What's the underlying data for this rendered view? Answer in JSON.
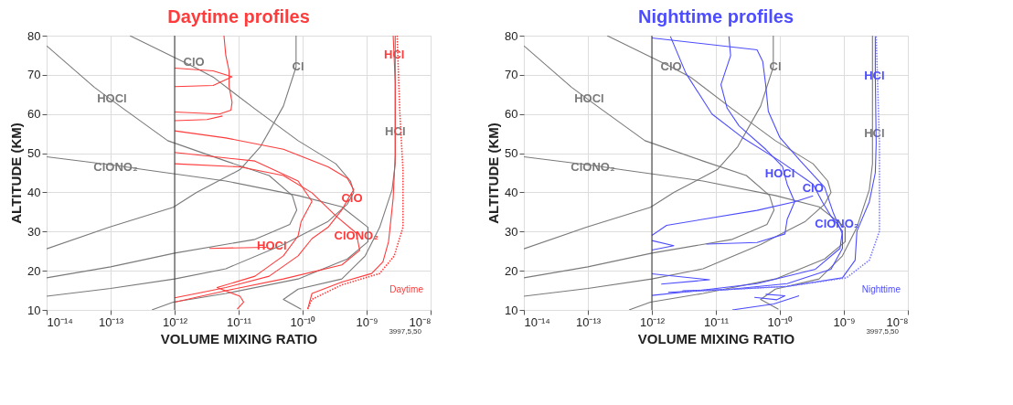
{
  "chart_data": [
    {
      "type": "line",
      "title": "Daytime profiles",
      "xlabel": "VOLUME MIXING RATIO",
      "ylabel": "ALTITUDE (KM)",
      "log": "x",
      "grid": true,
      "xlim": [
        1e-14,
        1e-08
      ],
      "ylim": [
        10,
        80
      ],
      "xticks": [
        {
          "value": 1e-14,
          "label": "10⁻¹⁴"
        },
        {
          "value": 1e-13,
          "label": "10⁻¹³"
        },
        {
          "value": 1e-12,
          "label": "10⁻¹²"
        },
        {
          "value": 1e-11,
          "label": "10⁻¹¹"
        },
        {
          "value": 1e-10,
          "label": "10⁻¹⁰"
        },
        {
          "value": 1e-09,
          "label": "10⁻⁹"
        },
        {
          "value": 1e-08,
          "label": "10⁻⁸"
        }
      ],
      "yticks": [
        10,
        20,
        30,
        40,
        50,
        60,
        70,
        80
      ],
      "ref_lines": [
        {
          "axis": "x",
          "value": 1e-12,
          "color": "#333333"
        }
      ],
      "series": [
        {
          "color": "#7a7a7a",
          "x": [
            2e-13,
            2e-12,
            4.1e-12,
            1.8e-11,
            8.5e-11,
            3.3e-10,
            5.6e-10,
            6.3e-10,
            5e-10,
            2.5e-10,
            5e-11,
            6.3e-12,
            1e-12,
            1e-13,
            1e-14
          ],
          "values": [
            80,
            72,
            69.3,
            61.3,
            53.2,
            47.3,
            42.9,
            40,
            37,
            32.6,
            26.7,
            20.5,
            17.9,
            15.5,
            13.5
          ]
        },
        {
          "color": "#7a7a7a",
          "x": [
            1e-14,
            5.6e-14,
            1.6e-13,
            7.8e-13,
            6.3e-12,
            3e-11,
            6.9e-11,
            8.1e-11,
            6.3e-11,
            1.8e-11,
            1e-12,
            1e-13,
            1e-14
          ],
          "values": [
            77.4,
            66.8,
            61.3,
            53.2,
            48,
            44.3,
            39.2,
            35.5,
            31.8,
            28,
            24.5,
            21,
            18.2
          ]
        },
        {
          "color": "#7a7a7a",
          "x": [
            1e-14,
            1.3e-13,
            3.3e-13,
            6.3e-12,
            8.5e-11,
            4.1e-10,
            1.05e-09,
            1.05e-09,
            5e-10,
            8.5e-11,
            6.3e-12,
            9.5e-13,
            4.4e-13
          ],
          "values": [
            49.1,
            46.8,
            45.8,
            42.9,
            39.2,
            36.3,
            31.1,
            27.4,
            23,
            17.9,
            14.2,
            12,
            10
          ]
        },
        {
          "color": "#7a7a7a",
          "x": [
            7.9e-11,
            7.9e-11,
            5e-11,
            2.2e-11,
            1.05e-11,
            2.2e-12,
            9.5e-13,
            9.5e-14,
            1e-14
          ],
          "values": [
            80,
            72,
            62,
            51.7,
            45.8,
            40,
            36.2,
            31.1,
            25.6
          ]
        },
        {
          "color": "#7a7a7a",
          "x": [
            9.5e-11,
            5e-11,
            8.5e-11,
            4.1e-10,
            9.5e-10,
            1.6e-09,
            2.5e-09,
            2.8e-09,
            2.8e-09,
            2.8e-09,
            2.8e-09
          ],
          "values": [
            10.2,
            12.7,
            15.3,
            17.9,
            23.8,
            31.1,
            40.7,
            47.3,
            54,
            60.5,
            80
          ]
        },
        {
          "color": "#ff3b3b",
          "x": [
            1e-12,
            6.3e-12,
            5e-11,
            2.5e-10,
            5e-10,
            6.3e-10,
            5.2e-10,
            4.1e-10,
            2.5e-10,
            1.4e-10,
            8.5e-11,
            3e-11,
            6.3e-12,
            2.2e-12,
            1e-12
          ],
          "values": [
            55.7,
            53.9,
            51,
            46.5,
            43.6,
            40.7,
            38.5,
            35.5,
            31.1,
            28.2,
            23.8,
            18.6,
            15.7,
            14.2,
            13.1
          ]
        },
        {
          "color": "#ff3b3b",
          "x": [
            1e-12,
            1.05e-11,
            5e-11,
            1.4e-10,
            3.3e-10,
            6.9e-10,
            7.8e-10,
            4.1e-10,
            5e-11,
            6.3e-12,
            1e-12
          ],
          "values": [
            47.3,
            46.5,
            44.3,
            39.9,
            34,
            29.6,
            25.2,
            21.5,
            17.9,
            14.9,
            12
          ]
        },
        {
          "color": "#ff3b3b",
          "x": [
            1e-12,
            1.8e-11,
            8.5e-11,
            1.4e-10,
            9.5e-11,
            8.5e-11,
            5e-11,
            1.8e-11,
            4.6e-12,
            1.05e-11,
            1.2e-11,
            9.5e-12
          ],
          "values": [
            50.2,
            48,
            42.9,
            37.7,
            32.6,
            28.9,
            23.8,
            18.6,
            15.7,
            13.5,
            12,
            10.2
          ]
        },
        {
          "color": "#ff3b3b",
          "x": [
            3.5e-12,
            2.7e-11
          ],
          "values": [
            25.7,
            26.0
          ]
        },
        {
          "color": "#ff3b3b",
          "x": [
            1e-12,
            4e-12,
            7.9e-12,
            4e-12,
            1e-12
          ],
          "values": [
            71.7,
            71,
            69.5,
            67.3,
            67
          ]
        },
        {
          "color": "#ff3b3b",
          "x": [
            5.9e-12,
            6.3e-12,
            7.1e-12,
            7.1e-12,
            7.9e-12,
            7.6e-12,
            5e-12,
            1e-12
          ],
          "values": [
            80,
            75,
            71,
            67,
            63,
            61,
            60,
            60.5
          ]
        },
        {
          "color": "#ff3b3b",
          "x": [
            1e-12,
            3.2e-12,
            5.6e-12
          ],
          "values": [
            58.3,
            58.6,
            59.5
          ]
        },
        {
          "color": "#ff3b3b",
          "x": [
            2.6e-09,
            2.7e-09,
            2.8e-09,
            2.8e-09,
            2.6e-09,
            2.2e-09,
            1.8e-09,
            1.2e-09,
            4.1e-10,
            1.4e-10,
            1.2e-10
          ],
          "values": [
            80,
            74,
            67.9,
            49.5,
            38.5,
            27.4,
            22.3,
            19.3,
            17.1,
            14.2,
            10.2
          ]
        },
        {
          "color": "#ff3b3b",
          "line_style": "dotted",
          "x": [
            3e-09,
            3.3e-09,
            3.7e-09,
            3.7e-09,
            2.7e-09,
            1.6e-09,
            4.1e-10,
            1.4e-10,
            1.2e-10
          ],
          "values": [
            80,
            60.5,
            45.8,
            31.1,
            23.8,
            19.3,
            16.4,
            12.7,
            10.2
          ]
        }
      ],
      "annotations": [
        {
          "text": "ClO",
          "x": 2e-12,
          "y": 73.2
        },
        {
          "text": "HOCl",
          "x": 1.05e-13,
          "y": 63.8
        },
        {
          "text": "ClONO₂",
          "x": 1.2e-13,
          "y": 46.5
        },
        {
          "text": "Cl",
          "x": 8.5e-11,
          "y": 72
        },
        {
          "text": "HCl",
          "x": 2.8e-09,
          "y": 55.4
        },
        {
          "text": "HCl",
          "x": 2.7e-09,
          "y": 75.2
        },
        {
          "text": "ClO",
          "x": 5.9e-10,
          "y": 38.5
        },
        {
          "text": "ClONO₂",
          "x": 6.9e-10,
          "y": 28.9
        },
        {
          "text": "HOCl",
          "x": 3.3e-11,
          "y": 26.4
        },
        "Daytime",
        "3997,5,50"
      ]
    },
    {
      "type": "line",
      "title": "Nighttime profiles",
      "xlabel": "VOLUME MIXING RATIO",
      "ylabel": "ALTITUDE (KM)",
      "log": "x",
      "grid": true,
      "xlim": [
        1e-14,
        1e-08
      ],
      "ylim": [
        10,
        80
      ],
      "xticks": [
        {
          "value": 1e-14,
          "label": "10⁻¹⁴"
        },
        {
          "value": 1e-13,
          "label": "10⁻¹³"
        },
        {
          "value": 1e-12,
          "label": "10⁻¹²"
        },
        {
          "value": 1e-11,
          "label": "10⁻¹¹"
        },
        {
          "value": 1e-10,
          "label": "10⁻¹⁰"
        },
        {
          "value": 1e-09,
          "label": "10⁻⁹"
        },
        {
          "value": 1e-08,
          "label": "10⁻⁸"
        }
      ],
      "yticks": [
        10,
        20,
        30,
        40,
        50,
        60,
        70,
        80
      ],
      "ref_lines": [
        {
          "axis": "x",
          "value": 1e-12,
          "color": "#333333"
        }
      ],
      "series": [
        {
          "color": "#7a7a7a",
          "x": [
            2e-13,
            2e-12,
            4.1e-12,
            1.8e-11,
            8.5e-11,
            3.3e-10,
            5.6e-10,
            6.3e-10,
            5e-10,
            2.5e-10,
            5e-11,
            6.3e-12,
            1e-12,
            1e-13,
            1e-14
          ],
          "values": [
            80,
            72,
            69.3,
            61.3,
            53.2,
            47.3,
            42.9,
            40,
            37,
            32.6,
            26.7,
            20.5,
            17.9,
            15.5,
            13.5
          ]
        },
        {
          "color": "#7a7a7a",
          "x": [
            1e-14,
            5.6e-14,
            1.6e-13,
            7.8e-13,
            6.3e-12,
            3e-11,
            6.9e-11,
            8.1e-11,
            6.3e-11,
            1.8e-11,
            1e-12,
            1e-13,
            1e-14
          ],
          "values": [
            77.4,
            66.8,
            61.3,
            53.2,
            48,
            44.3,
            39.2,
            35.5,
            31.8,
            28,
            24.5,
            21,
            18.2
          ]
        },
        {
          "color": "#7a7a7a",
          "x": [
            1e-14,
            1.3e-13,
            3.3e-13,
            6.3e-12,
            8.5e-11,
            4.1e-10,
            1.05e-09,
            1.05e-09,
            5e-10,
            8.5e-11,
            6.3e-12,
            9.5e-13,
            4.4e-13
          ],
          "values": [
            49.1,
            46.8,
            45.8,
            42.9,
            39.2,
            36.3,
            31.1,
            27.4,
            23,
            17.9,
            14.2,
            12,
            10
          ]
        },
        {
          "color": "#7a7a7a",
          "x": [
            7.9e-11,
            7.9e-11,
            5e-11,
            2.2e-11,
            1.05e-11,
            2.2e-12,
            9.5e-13,
            9.5e-14,
            1e-14
          ],
          "values": [
            80,
            72,
            62,
            51.7,
            45.8,
            40,
            36.2,
            31.1,
            25.6
          ]
        },
        {
          "color": "#7a7a7a",
          "x": [
            9.5e-11,
            5e-11,
            8.5e-11,
            4.1e-10,
            9.5e-10,
            1.6e-09,
            2.5e-09,
            2.8e-09,
            2.8e-09,
            2.8e-09,
            2.8e-09
          ],
          "values": [
            10.2,
            12.7,
            15.3,
            17.9,
            23.8,
            31.1,
            40.7,
            47.3,
            54,
            60.5,
            80
          ]
        },
        {
          "color": "#4d4dff",
          "x": [
            1.95e-12,
            3.4e-12,
            8.7e-12,
            2.6e-11,
            1e-10,
            3.3e-10,
            4.6e-10,
            6.3e-10,
            7.8e-10,
            9.5e-10,
            8.7e-10,
            3.6e-10,
            4.4e-11,
            5.1e-12,
            1e-12
          ],
          "values": [
            79.8,
            70.4,
            60,
            54,
            48,
            42.1,
            37.6,
            33.9,
            32,
            30.1,
            25.7,
            20.4,
            16.7,
            14.9,
            13.7
          ]
        },
        {
          "color": "#4d4dff",
          "x": [
            1.6e-11,
            1.7e-11,
            1.2e-11,
            1.5e-11,
            2.3e-11,
            6e-11,
            1.1e-10,
            1.3e-10,
            1.7e-10,
            1.3e-10,
            1.2e-10,
            4.4e-11,
            7.1e-12
          ],
          "values": [
            79.8,
            74.9,
            67.5,
            61.5,
            57,
            51,
            46.6,
            42.1,
            37.6,
            33.1,
            29.4,
            27.2,
            26.8
          ]
        },
        {
          "color": "#4d4dff",
          "x": [
            1e-12,
            4.4e-11,
            5.4e-11,
            6e-11,
            6.6e-11,
            1e-10,
            2.1e-10,
            5e-10,
            6.9e-10,
            9.5e-10,
            9.5e-10,
            6.3e-10,
            1.3e-10,
            1.5e-11,
            1.8e-12
          ],
          "values": [
            79.4,
            76.4,
            73.4,
            67.5,
            60.7,
            54,
            48,
            41.3,
            34.6,
            29.4,
            25.7,
            20.4,
            16.7,
            15.2,
            14.5
          ]
        },
        {
          "color": "#4d4dff",
          "x": [
            1e-12,
            1.7e-12,
            4.4e-11,
            1.7e-10,
            3.3e-10
          ],
          "values": [
            29,
            31.6,
            35.4,
            37.6,
            39.1
          ]
        },
        {
          "color": "#4d4dff",
          "x": [
            1e-12,
            2.2e-12,
            1e-12
          ],
          "values": [
            27.7,
            26.4,
            25.3
          ]
        },
        {
          "color": "#4d4dff",
          "x": [
            1e-12,
            8e-12,
            1.4e-12
          ],
          "values": [
            19.2,
            17.7,
            16.6
          ]
        },
        {
          "color": "#4d4dff",
          "x": [
            4e-11,
            9e-11,
            1.2e-10,
            6e-11
          ],
          "values": [
            13.2,
            12.6,
            13.6,
            14.0
          ]
        },
        {
          "color": "#4d4dff",
          "x": [
            1.8e-11,
            8e-11,
            2e-10
          ],
          "values": [
            10,
            11.5,
            13.6
          ]
        },
        {
          "color": "#4d4dff",
          "x": [
            3.1e-09,
            3.1e-09,
            3.2e-09,
            3.1e-09,
            2.5e-09,
            1.6e-09,
            1.5e-09,
            9.5e-10,
            1.3e-10,
            1.5e-11,
            3e-12
          ],
          "values": [
            79.8,
            69.7,
            52.5,
            45,
            37.6,
            30.1,
            22.7,
            18.2,
            16,
            15.2,
            14.9
          ]
        },
        {
          "color": "#7b7bff",
          "line_style": "dotted",
          "x": [
            3.2e-09,
            3.6e-09,
            3.6e-09,
            2.5e-09,
            1.1e-09,
            1.3e-10,
            2.7e-12
          ],
          "values": [
            79.8,
            52.5,
            30.1,
            22.7,
            18.2,
            16,
            14.6
          ]
        }
      ],
      "annotations": [
        {
          "text": "ClO",
          "x": 2e-12,
          "y": 72
        },
        {
          "text": "HOCl",
          "x": 1.05e-13,
          "y": 63.8
        },
        {
          "text": "ClONO₂",
          "x": 1.2e-13,
          "y": 46.5
        },
        {
          "text": "Cl",
          "x": 8.5e-11,
          "y": 72
        },
        {
          "text": "HCl",
          "x": 3e-09,
          "y": 55.1
        },
        {
          "text": "HCl",
          "x": 3e-09,
          "y": 69.7
        },
        {
          "text": "HOCl",
          "x": 1e-10,
          "y": 44.7
        },
        {
          "text": "ClO",
          "x": 3.3e-10,
          "y": 41
        },
        {
          "text": "ClONO₂",
          "x": 7.8e-10,
          "y": 32
        },
        "Nighttime",
        "3997,5,50"
      ]
    }
  ]
}
